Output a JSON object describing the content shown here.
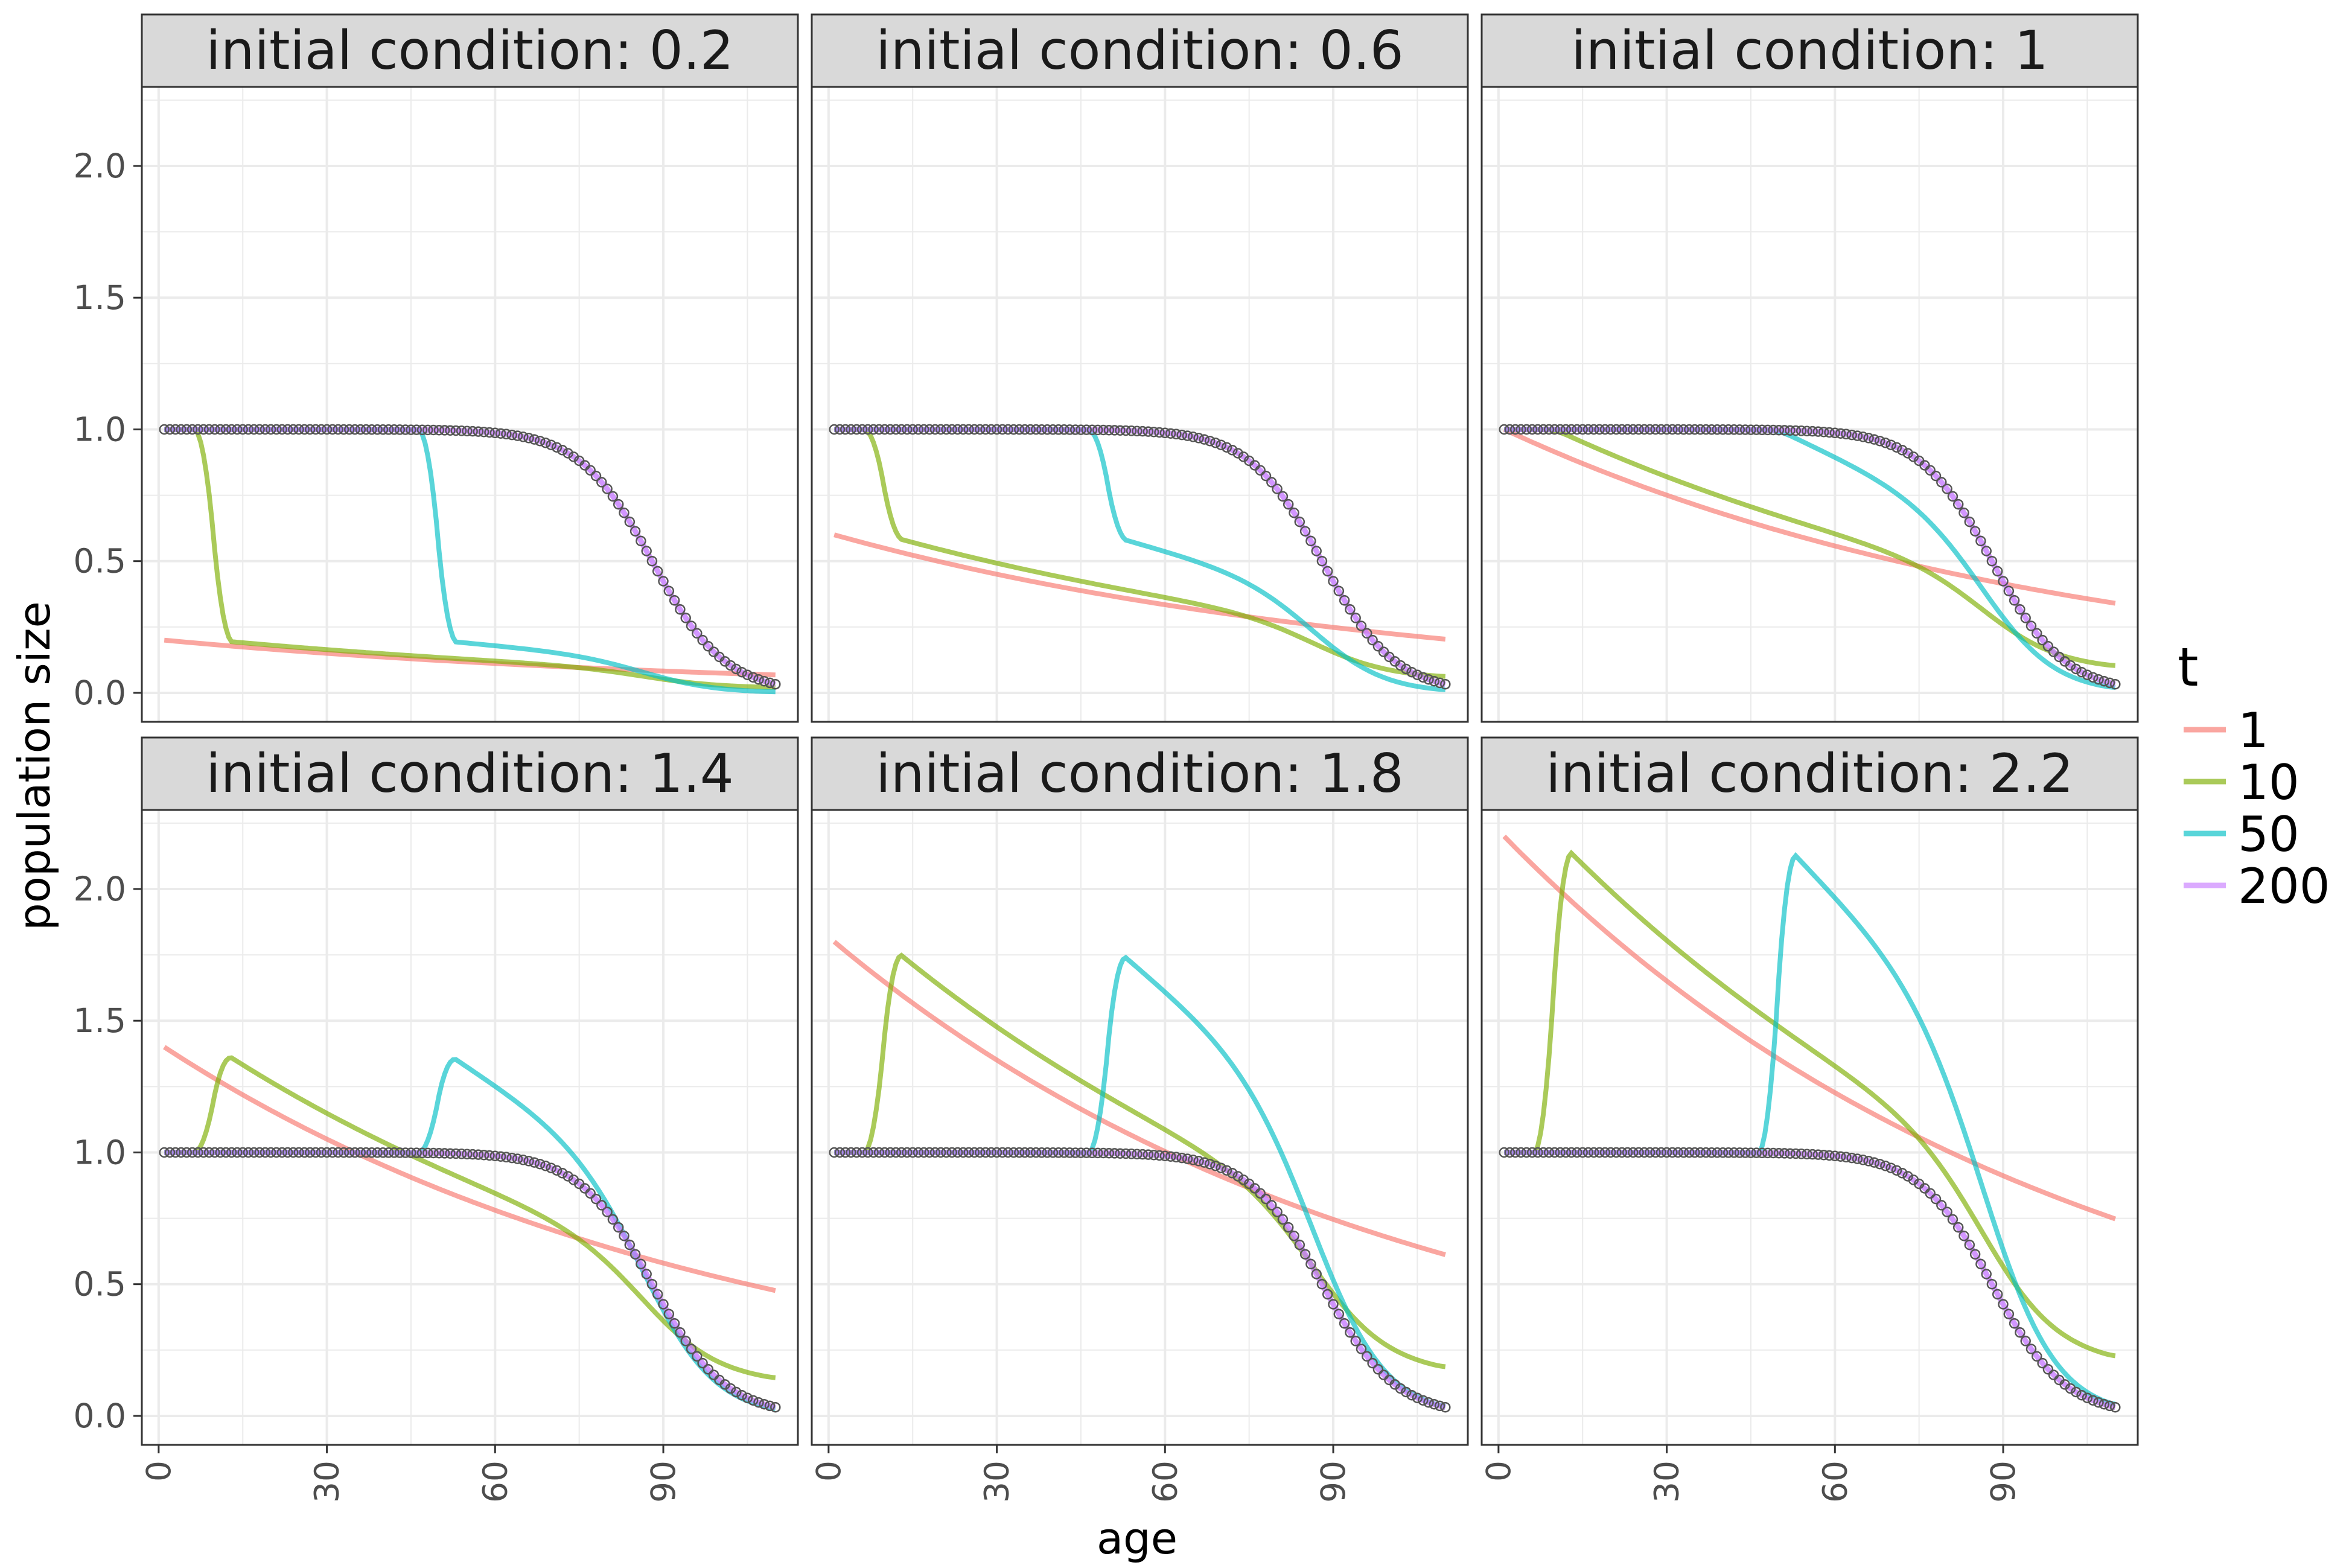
{
  "chart_data": {
    "type": "line",
    "facet_label_prefix": "initial condition: ",
    "facets": [
      {
        "label": "initial condition: 0.2",
        "ic": 0.2
      },
      {
        "label": "initial condition: 0.6",
        "ic": 0.6
      },
      {
        "label": "initial condition: 1",
        "ic": 1
      },
      {
        "label": "initial condition: 1.4",
        "ic": 1.4
      },
      {
        "label": "initial condition: 1.8",
        "ic": 1.8
      },
      {
        "label": "initial condition: 2.2",
        "ic": 2.2
      }
    ],
    "xlabel": "age",
    "ylabel": "population size",
    "xlim": [
      -3,
      114
    ],
    "ylim": [
      -0.11,
      2.3
    ],
    "x_ticks": [
      0,
      30,
      60,
      90
    ],
    "x_tick_labels": [
      "0",
      "30",
      "60",
      "90"
    ],
    "y_ticks": [
      0,
      0.5,
      1,
      1.5,
      2
    ],
    "y_tick_labels": [
      "0.0",
      "0.5",
      "1.0",
      "1.5",
      "2.0"
    ],
    "x_range": [
      1,
      110
    ],
    "legend": {
      "title": "t",
      "placement": "right",
      "entries": [
        {
          "label": "1",
          "color": "#F8766D"
        },
        {
          "label": "10",
          "color": "#7CAE00"
        },
        {
          "label": "50",
          "color": "#00BFC4"
        },
        {
          "label": "200",
          "color": "#C77CFF"
        }
      ]
    },
    "series_model": {
      "t1": "ic * exp(-0.0099 * (age - 1))",
      "t200": "1 / (1 + exp((age - 88) / 6.5)), normalized to 1 at age 1; drawn as open circles at every integer age",
      "t10_t50": "characteristic solution: boundary value 1 up to age t, then initial-condition profile shifted by t; smoothed"
    },
    "grid": true,
    "background": "#ffffff",
    "grid_color": "#ebebeb",
    "strip_fill": "#d9d9d9",
    "panel_border": "#333333"
  }
}
